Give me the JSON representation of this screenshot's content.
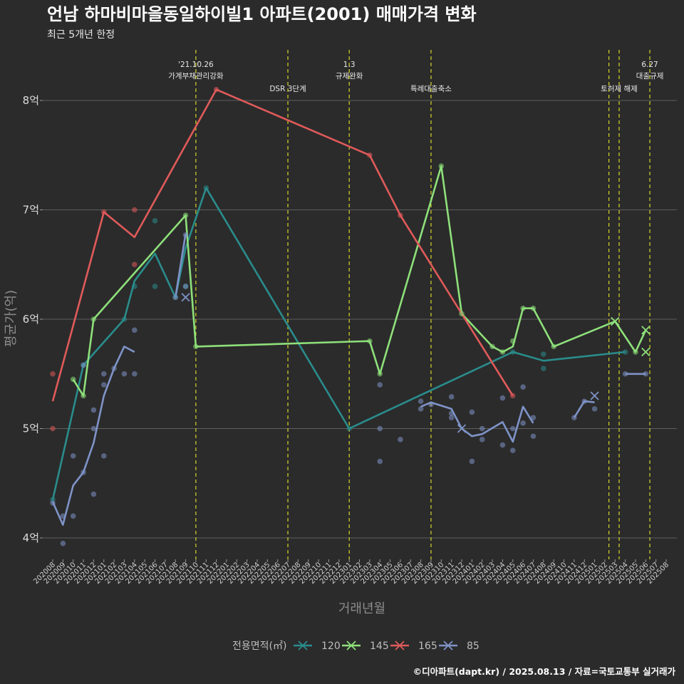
{
  "chart_data": {
    "type": "line",
    "title": "언남 하마비마을동일하이빌1 아파트(2001) 매매가격 변화",
    "subtitle": "최근 5개년 한정",
    "xlabel": "거래년월",
    "ylabel": "평균가(억)",
    "caption": "©디아파트(dapt.kr) / 2025.08.13 / 자료=국토교통부 실거래가",
    "legend_title": "전용면적(㎡)",
    "legend_position": "bottom",
    "ylim": [
      3.8,
      8.5
    ],
    "yticks": [
      4,
      5,
      6,
      7,
      8
    ],
    "ytick_labels": [
      "4억",
      "5억",
      "6억",
      "7억",
      "8억"
    ],
    "grid": true,
    "categories": [
      "202008",
      "202009",
      "202010",
      "202011",
      "202012",
      "202101",
      "202102",
      "202103",
      "202104",
      "202105",
      "202106",
      "202107",
      "202108",
      "202109",
      "202110",
      "202111",
      "202112",
      "202201",
      "202202",
      "202203",
      "202204",
      "202205",
      "202206",
      "202207",
      "202208",
      "202209",
      "202210",
      "202211",
      "202212",
      "202301",
      "202302",
      "202303",
      "202304",
      "202305",
      "202306",
      "202307",
      "202308",
      "202309",
      "202310",
      "202311",
      "202312",
      "202401",
      "202402",
      "202403",
      "202404",
      "202405",
      "202406",
      "202407",
      "202408",
      "202409",
      "202410",
      "202411",
      "202412",
      "202501",
      "202502",
      "202503",
      "202504",
      "202505",
      "202506",
      "202507",
      "202508"
    ],
    "annotations": [
      {
        "x": 14,
        "text": [
          "'21.10.26",
          "가계부채관리강화"
        ]
      },
      {
        "x": 23,
        "text": [
          "DSR 3단계"
        ]
      },
      {
        "x": 29,
        "text": [
          "1.3",
          "규제완화"
        ]
      },
      {
        "x": 37,
        "text": [
          "특례대출축소"
        ]
      },
      {
        "x": 54.4,
        "text": []
      },
      {
        "x": 55.4,
        "text": [
          "토허제 해제"
        ]
      },
      {
        "x": 58.4,
        "text": [
          "6.27",
          "대출규제"
        ]
      }
    ],
    "series": [
      {
        "name": "120",
        "color": "#2a8c8c",
        "line": [
          [
            0,
            4.35
          ],
          [
            3,
            5.58
          ],
          [
            7,
            6.0
          ],
          [
            8,
            6.35
          ],
          [
            10,
            6.6
          ],
          [
            12,
            6.2
          ],
          [
            13,
            6.65
          ],
          [
            15,
            7.2
          ],
          [
            29,
            5.0
          ],
          [
            45,
            5.7
          ],
          [
            48,
            5.62
          ],
          [
            56,
            5.7
          ]
        ],
        "points": [
          [
            0,
            4.35
          ],
          [
            3,
            5.58
          ],
          [
            7,
            6.0
          ],
          [
            8,
            6.3
          ],
          [
            10,
            6.3
          ],
          [
            10,
            6.9
          ],
          [
            12,
            6.2
          ],
          [
            13,
            6.3
          ],
          [
            15,
            7.2
          ],
          [
            29,
            5.0
          ],
          [
            45,
            5.7
          ],
          [
            48,
            5.68
          ],
          [
            48,
            5.55
          ],
          [
            56,
            5.7
          ]
        ],
        "crosses": []
      },
      {
        "name": "145",
        "color": "#8ee07a",
        "line": [
          [
            2,
            5.45
          ],
          [
            3,
            5.3
          ],
          [
            4,
            6.0
          ],
          [
            13,
            6.95
          ],
          [
            14,
            5.75
          ],
          [
            31,
            5.8
          ],
          [
            32,
            5.5
          ],
          [
            38,
            7.4
          ],
          [
            40,
            6.05
          ],
          [
            43,
            5.75
          ],
          [
            44,
            5.7
          ],
          [
            45,
            5.75
          ],
          [
            46,
            6.1
          ],
          [
            47,
            6.1
          ],
          [
            49,
            5.75
          ],
          [
            55,
            5.98
          ],
          [
            57,
            5.7
          ],
          [
            58,
            5.9
          ]
        ],
        "points": [
          [
            2,
            5.45
          ],
          [
            3,
            5.3
          ],
          [
            4,
            6.0
          ],
          [
            13,
            6.95
          ],
          [
            14,
            5.75
          ],
          [
            31,
            5.8
          ],
          [
            32,
            5.5
          ],
          [
            38,
            7.4
          ],
          [
            40,
            6.05
          ],
          [
            43,
            5.75
          ],
          [
            44,
            5.7
          ],
          [
            45,
            5.8
          ],
          [
            46,
            6.1
          ],
          [
            47,
            6.1
          ],
          [
            49,
            5.75
          ],
          [
            57,
            5.7
          ]
        ],
        "crosses": [
          [
            55,
            5.98
          ],
          [
            58,
            5.9
          ],
          [
            58,
            5.7
          ]
        ]
      },
      {
        "name": "165",
        "color": "#e05a5a",
        "line": [
          [
            0,
            5.25
          ],
          [
            5,
            6.98
          ],
          [
            8,
            6.75
          ],
          [
            16,
            8.1
          ],
          [
            31,
            7.5
          ],
          [
            34,
            6.95
          ],
          [
            45,
            5.3
          ]
        ],
        "points": [
          [
            0,
            5.5
          ],
          [
            0,
            5.0
          ],
          [
            5,
            6.98
          ],
          [
            8,
            7.0
          ],
          [
            8,
            6.5
          ],
          [
            16,
            8.1
          ],
          [
            31,
            7.5
          ],
          [
            34,
            6.95
          ],
          [
            45,
            5.3
          ]
        ],
        "crosses": []
      },
      {
        "name": "85",
        "color": "#7f93c8",
        "line": [
          [
            0,
            4.33
          ],
          [
            1,
            4.12
          ],
          [
            2,
            4.48
          ],
          [
            3,
            4.6
          ],
          [
            4,
            4.87
          ],
          [
            5,
            5.3
          ],
          [
            6,
            5.55
          ],
          [
            7,
            5.75
          ],
          [
            8,
            5.7
          ],
          [
            null,
            null
          ],
          [
            12,
            6.2
          ],
          [
            13,
            6.78
          ],
          [
            null,
            null
          ],
          [
            36,
            5.2
          ],
          [
            37,
            5.24
          ],
          [
            39,
            5.18
          ],
          [
            40,
            5.0
          ],
          [
            41,
            4.93
          ],
          [
            42,
            4.95
          ],
          [
            44,
            5.06
          ],
          [
            45,
            4.88
          ],
          [
            46,
            5.2
          ],
          [
            47,
            5.05
          ],
          [
            null,
            null
          ],
          [
            51,
            5.1
          ],
          [
            52,
            5.25
          ],
          [
            53,
            5.24
          ],
          [
            null,
            null
          ],
          [
            56,
            5.5
          ],
          [
            58,
            5.5
          ]
        ],
        "points": [
          [
            0,
            4.32
          ],
          [
            1,
            4.2
          ],
          [
            1,
            3.95
          ],
          [
            2,
            4.75
          ],
          [
            2,
            4.2
          ],
          [
            3,
            4.6
          ],
          [
            3,
            5.58
          ],
          [
            4,
            5.17
          ],
          [
            4,
            5.0
          ],
          [
            4,
            4.4
          ],
          [
            5,
            5.5
          ],
          [
            5,
            5.4
          ],
          [
            5,
            4.75
          ],
          [
            6,
            5.55
          ],
          [
            7,
            5.5
          ],
          [
            8,
            5.9
          ],
          [
            8,
            5.5
          ],
          [
            12,
            6.2
          ],
          [
            13,
            6.3
          ],
          [
            13,
            6.77
          ],
          [
            32,
            5.4
          ],
          [
            32,
            5.0
          ],
          [
            32,
            4.7
          ],
          [
            34,
            4.9
          ],
          [
            36,
            5.25
          ],
          [
            36,
            5.18
          ],
          [
            37,
            5.22
          ],
          [
            39,
            5.29
          ],
          [
            39,
            5.14
          ],
          [
            39,
            5.1
          ],
          [
            41,
            5.15
          ],
          [
            41,
            4.7
          ],
          [
            42,
            5.0
          ],
          [
            42,
            4.9
          ],
          [
            44,
            5.28
          ],
          [
            44,
            4.85
          ],
          [
            45,
            5.0
          ],
          [
            45,
            4.8
          ],
          [
            46,
            5.38
          ],
          [
            46,
            5.05
          ],
          [
            47,
            4.93
          ],
          [
            47,
            5.1
          ],
          [
            51,
            5.1
          ],
          [
            52,
            5.25
          ],
          [
            53,
            5.18
          ],
          [
            56,
            5.5
          ],
          [
            58,
            5.5
          ]
        ],
        "crosses": [
          [
            13,
            6.2
          ],
          [
            40,
            5.0
          ],
          [
            53,
            5.3
          ]
        ]
      }
    ]
  }
}
